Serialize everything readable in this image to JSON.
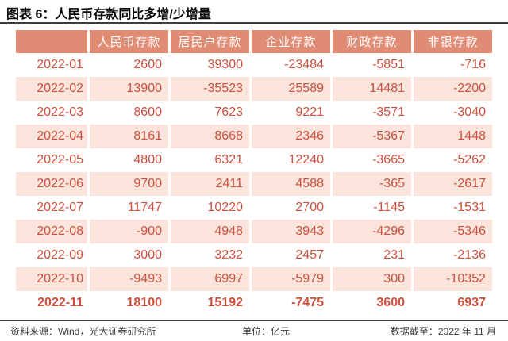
{
  "title": "图表 6：人民币存款同比多增/少增量",
  "colors": {
    "header_bg": "#E08B74",
    "row_alt_bg": "#FAE4DC",
    "cell_text": "#CC503D",
    "rule": "#3D3D3D",
    "footer_text": "#3A3A3A"
  },
  "chart_data": {
    "type": "table",
    "title": "图表 6：人民币存款同比多增/少增量",
    "unit": "亿元",
    "columns": [
      "",
      "人民币存款",
      "居民户存款",
      "企业存款",
      "财政存款",
      "非银存款"
    ],
    "rows": [
      {
        "date": "2022-01",
        "values": [
          2600,
          39300,
          -23484,
          -5851,
          -716
        ],
        "bold": false
      },
      {
        "date": "2022-02",
        "values": [
          13900,
          -35523,
          25589,
          14481,
          -2200
        ],
        "bold": false
      },
      {
        "date": "2022-03",
        "values": [
          8600,
          7623,
          9221,
          -3571,
          -3040
        ],
        "bold": false
      },
      {
        "date": "2022-04",
        "values": [
          8161,
          8668,
          2346,
          -5367,
          1448
        ],
        "bold": false
      },
      {
        "date": "2022-05",
        "values": [
          4800,
          6321,
          12240,
          -3665,
          -5262
        ],
        "bold": false
      },
      {
        "date": "2022-06",
        "values": [
          9700,
          2411,
          4588,
          -365,
          -2617
        ],
        "bold": false
      },
      {
        "date": "2022-07",
        "values": [
          11747,
          10220,
          2700,
          -1145,
          -1531
        ],
        "bold": false
      },
      {
        "date": "2022-08",
        "values": [
          -900,
          4948,
          3943,
          -4296,
          -5346
        ],
        "bold": false
      },
      {
        "date": "2022-09",
        "values": [
          3000,
          3232,
          2457,
          231,
          -2136
        ],
        "bold": false
      },
      {
        "date": "2022-10",
        "values": [
          -9493,
          6997,
          -5979,
          300,
          -10352
        ],
        "bold": false
      },
      {
        "date": "2022-11",
        "values": [
          18100,
          15192,
          -7475,
          3600,
          6937
        ],
        "bold": true
      }
    ]
  },
  "footer": {
    "source": "资料来源：Wind，光大证券研究所",
    "unit": "单位：亿元",
    "data_as_of": "数据截至：2022 年 11 月"
  }
}
